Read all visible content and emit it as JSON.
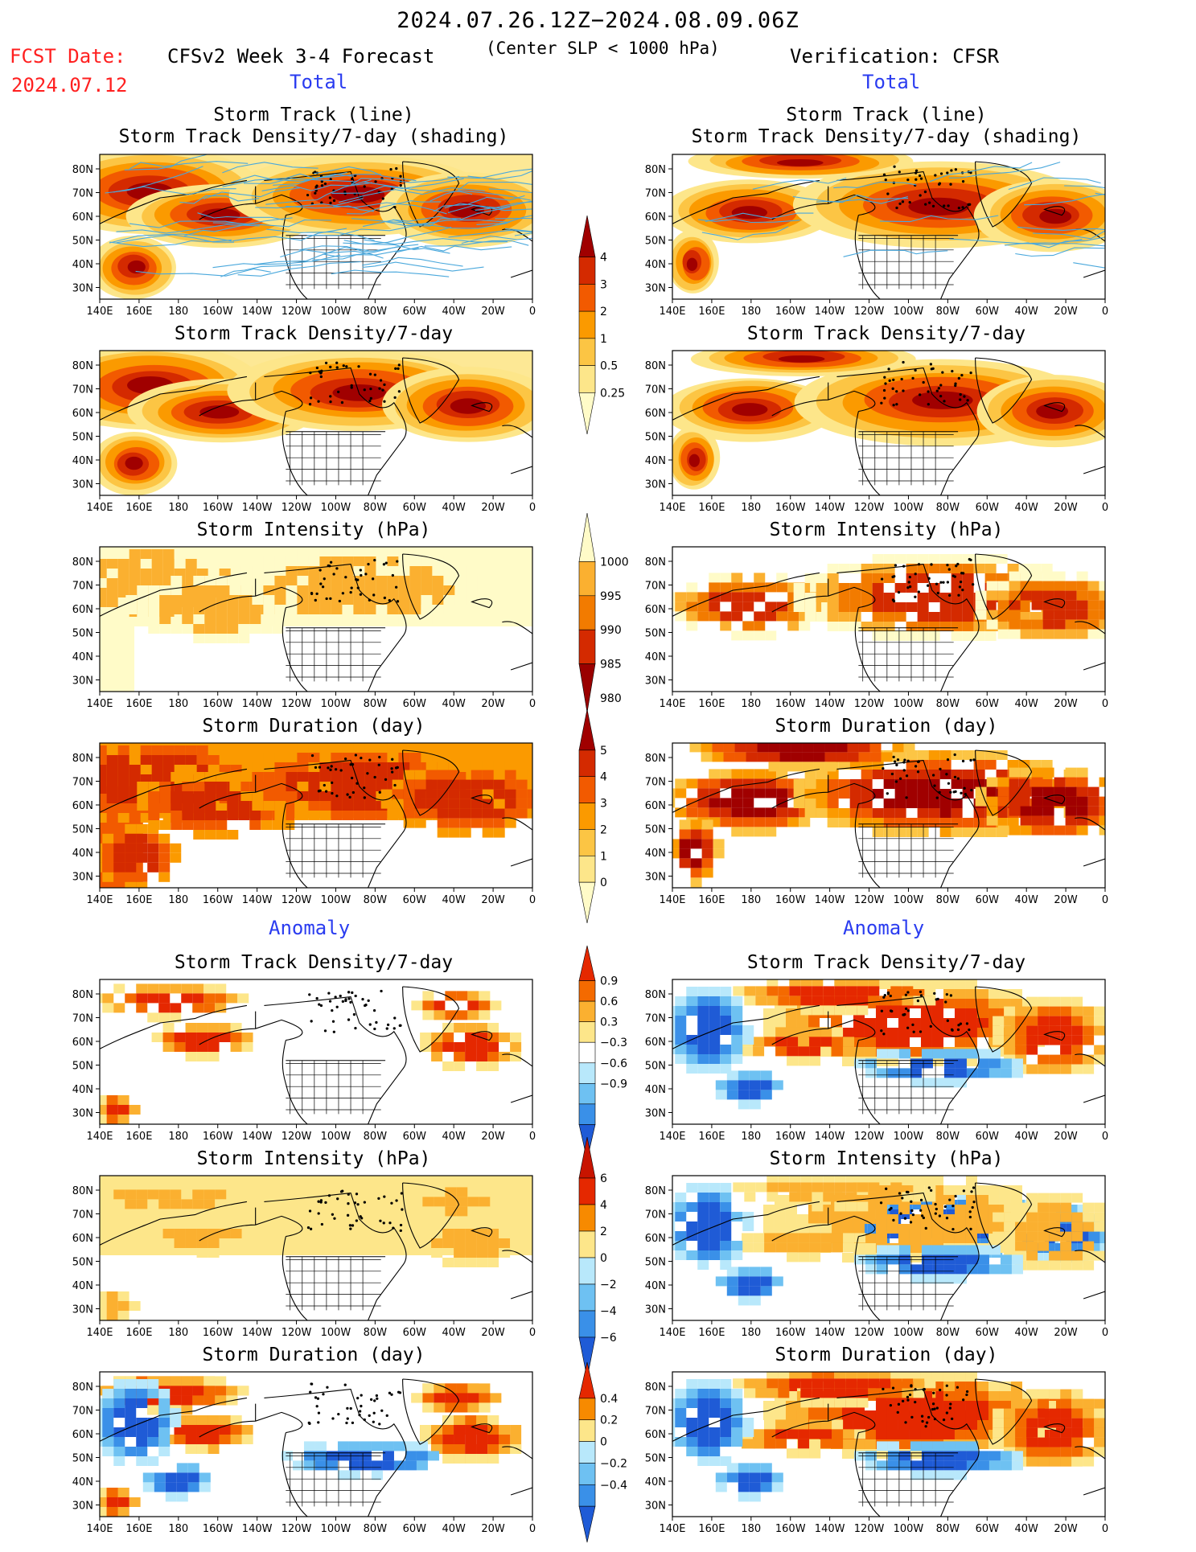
{
  "header": {
    "period": "2024.07.26.12Z−2024.08.09.06Z",
    "fcst_label": "FCST Date:",
    "fcst_date": "2024.07.12",
    "model_title": "CFSv2 Week 3-4 Forecast",
    "criterion": "(Center SLP < 1000 hPa)",
    "verification": "Verification: CFSR"
  },
  "section_labels": {
    "total_left": "Total",
    "total_right": "Total",
    "anomaly_left": "Anomaly",
    "anomaly_right": "Anomaly"
  },
  "axes": {
    "lon_ticks": [
      "140E",
      "160E",
      "180",
      "160W",
      "140W",
      "120W",
      "100W",
      "80W",
      "60W",
      "40W",
      "20W",
      "0"
    ],
    "lat_ticks": [
      "80N",
      "70N",
      "60N",
      "50N",
      "40N",
      "30N"
    ]
  },
  "panel_titles": {
    "p1a": "Storm Track (line)",
    "p1b": "Storm Track Density/7-day (shading)",
    "p2": "Storm Track Density/7-day",
    "p3": "Storm Intensity (hPa)",
    "p4": "Storm Duration (day)",
    "p5": "Storm Track Density/7-day",
    "p6": "Storm Intensity (hPa)",
    "p7": "Storm Duration (day)"
  },
  "colorbars": {
    "density": {
      "labels": [
        "4",
        "3",
        "2",
        "1",
        "0.5",
        "0.25"
      ],
      "colors": [
        "#a00000",
        "#d42a00",
        "#f25a00",
        "#fb9a00",
        "#fcc544",
        "#fde68a",
        "#fffbc8"
      ]
    },
    "intensity": {
      "labels": [
        "1000",
        "995",
        "990",
        "985",
        "980"
      ],
      "colors": [
        "#fffbc8",
        "#fbb030",
        "#f27b00",
        "#d42a00",
        "#9a0000"
      ]
    },
    "duration": {
      "labels": [
        "5",
        "4",
        "3",
        "2",
        "1",
        "0"
      ],
      "colors": [
        "#a00000",
        "#d42a00",
        "#f25a00",
        "#fb9a00",
        "#fcc544",
        "#fde68a",
        "#fffbc8"
      ]
    },
    "anom_density": {
      "labels": [
        "0.9",
        "0.6",
        "0.3",
        "−0.3",
        "−0.6",
        "−0.9"
      ],
      "colors": [
        "#e52800",
        "#f46a00",
        "#fbb030",
        "#fde68a",
        "#ffffff",
        "#b8e8fb",
        "#6ec1f2",
        "#3a90e8",
        "#1f5bd6"
      ]
    },
    "anom_intensity": {
      "labels": [
        "6",
        "4",
        "2",
        "0",
        "−2",
        "−4",
        "−6"
      ],
      "colors": [
        "#c81400",
        "#e52800",
        "#f78a00",
        "#fde68a",
        "#b8e8fb",
        "#6ec1f2",
        "#3a90e8",
        "#1f5bd6"
      ]
    },
    "anom_duration": {
      "labels": [
        "0.4",
        "0.2",
        "0",
        "−0.2",
        "−0.4"
      ],
      "colors": [
        "#e52800",
        "#f78a00",
        "#fde68a",
        "#b8e8fb",
        "#6ec1f2",
        "#3a90e8",
        "#1f5bd6"
      ]
    }
  }
}
